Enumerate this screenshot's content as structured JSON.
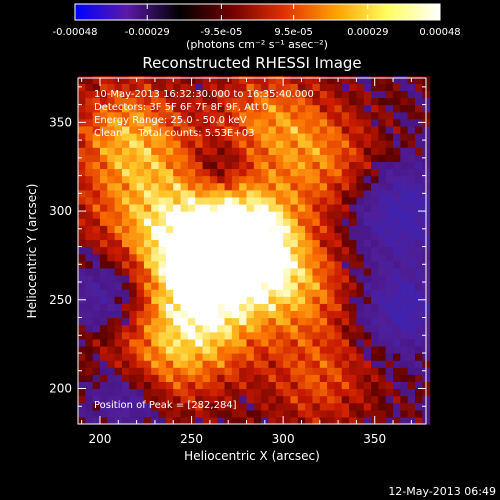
{
  "chart_data": {
    "type": "heatmap",
    "title": "Reconstructed RHESSI Image",
    "xlabel": "Heliocentric X (arcsec)",
    "ylabel": "Heliocentric Y (arcsec)",
    "xlim": [
      188,
      378
    ],
    "ylim": [
      180,
      375
    ],
    "x_ticks": [
      200,
      250,
      300,
      350
    ],
    "y_ticks": [
      200,
      250,
      300,
      350
    ],
    "x_tick_labels": [
      "200",
      "250",
      "300",
      "350"
    ],
    "y_tick_labels": [
      "200",
      "250",
      "300",
      "350"
    ],
    "colorbar": {
      "unit_label": "(photons cm⁻² s⁻¹ asec⁻²)",
      "range": [
        -0.00048,
        0.00048
      ],
      "tick_values": [
        -0.00048,
        -0.00029,
        -9.5e-05,
        9.5e-05,
        0.00029,
        0.00048
      ],
      "tick_labels": [
        "-0.00048",
        "-0.00029",
        "-9.5e-05",
        "9.5e-05",
        "0.00029",
        "0.00048"
      ],
      "colors": [
        "#0000ff",
        "#5a1aa8",
        "#000000",
        "#700000",
        "#e03000",
        "#ffa000",
        "#ffff60",
        "#ffffff"
      ]
    },
    "annotations": [
      "10-May-2013 16:32:30.000 to 16:35:40.000",
      "Detectors: 3F 5F 6F 7F 8F 9F, Att 0",
      "Energy Range: 25.0 - 50.0 keV",
      "Clean     Total counts: 5.53E+03"
    ],
    "peak_label": "Position of Peak = [282,284]",
    "peak": [
      282,
      284
    ],
    "sources": [
      {
        "x": 282,
        "y": 284,
        "amp": 1.0,
        "sigma": 20
      },
      {
        "x": 255,
        "y": 270,
        "amp": 0.75,
        "sigma": 24
      },
      {
        "x": 230,
        "y": 300,
        "amp": 0.55,
        "sigma": 28
      },
      {
        "x": 215,
        "y": 345,
        "amp": 0.55,
        "sigma": 22
      },
      {
        "x": 320,
        "y": 330,
        "amp": 0.5,
        "sigma": 22
      },
      {
        "x": 310,
        "y": 255,
        "amp": 0.5,
        "sigma": 20
      },
      {
        "x": 260,
        "y": 235,
        "amp": 0.5,
        "sigma": 22
      },
      {
        "x": 230,
        "y": 215,
        "amp": 0.45,
        "sigma": 22
      },
      {
        "x": 320,
        "y": 205,
        "amp": 0.4,
        "sigma": 20
      },
      {
        "x": 290,
        "y": 355,
        "amp": 0.45,
        "sigma": 20
      }
    ],
    "negative_regions": [
      {
        "x": 365,
        "y": 300,
        "amp": -0.55,
        "sigma": 18
      },
      {
        "x": 365,
        "y": 245,
        "amp": -0.5,
        "sigma": 16
      },
      {
        "x": 205,
        "y": 255,
        "amp": -0.45,
        "sigma": 16
      },
      {
        "x": 215,
        "y": 195,
        "amp": -0.45,
        "sigma": 14
      },
      {
        "x": 265,
        "y": 325,
        "amp": -0.3,
        "sigma": 10
      }
    ]
  },
  "footer": {
    "timestamp": "12-May-2013 06:49"
  }
}
